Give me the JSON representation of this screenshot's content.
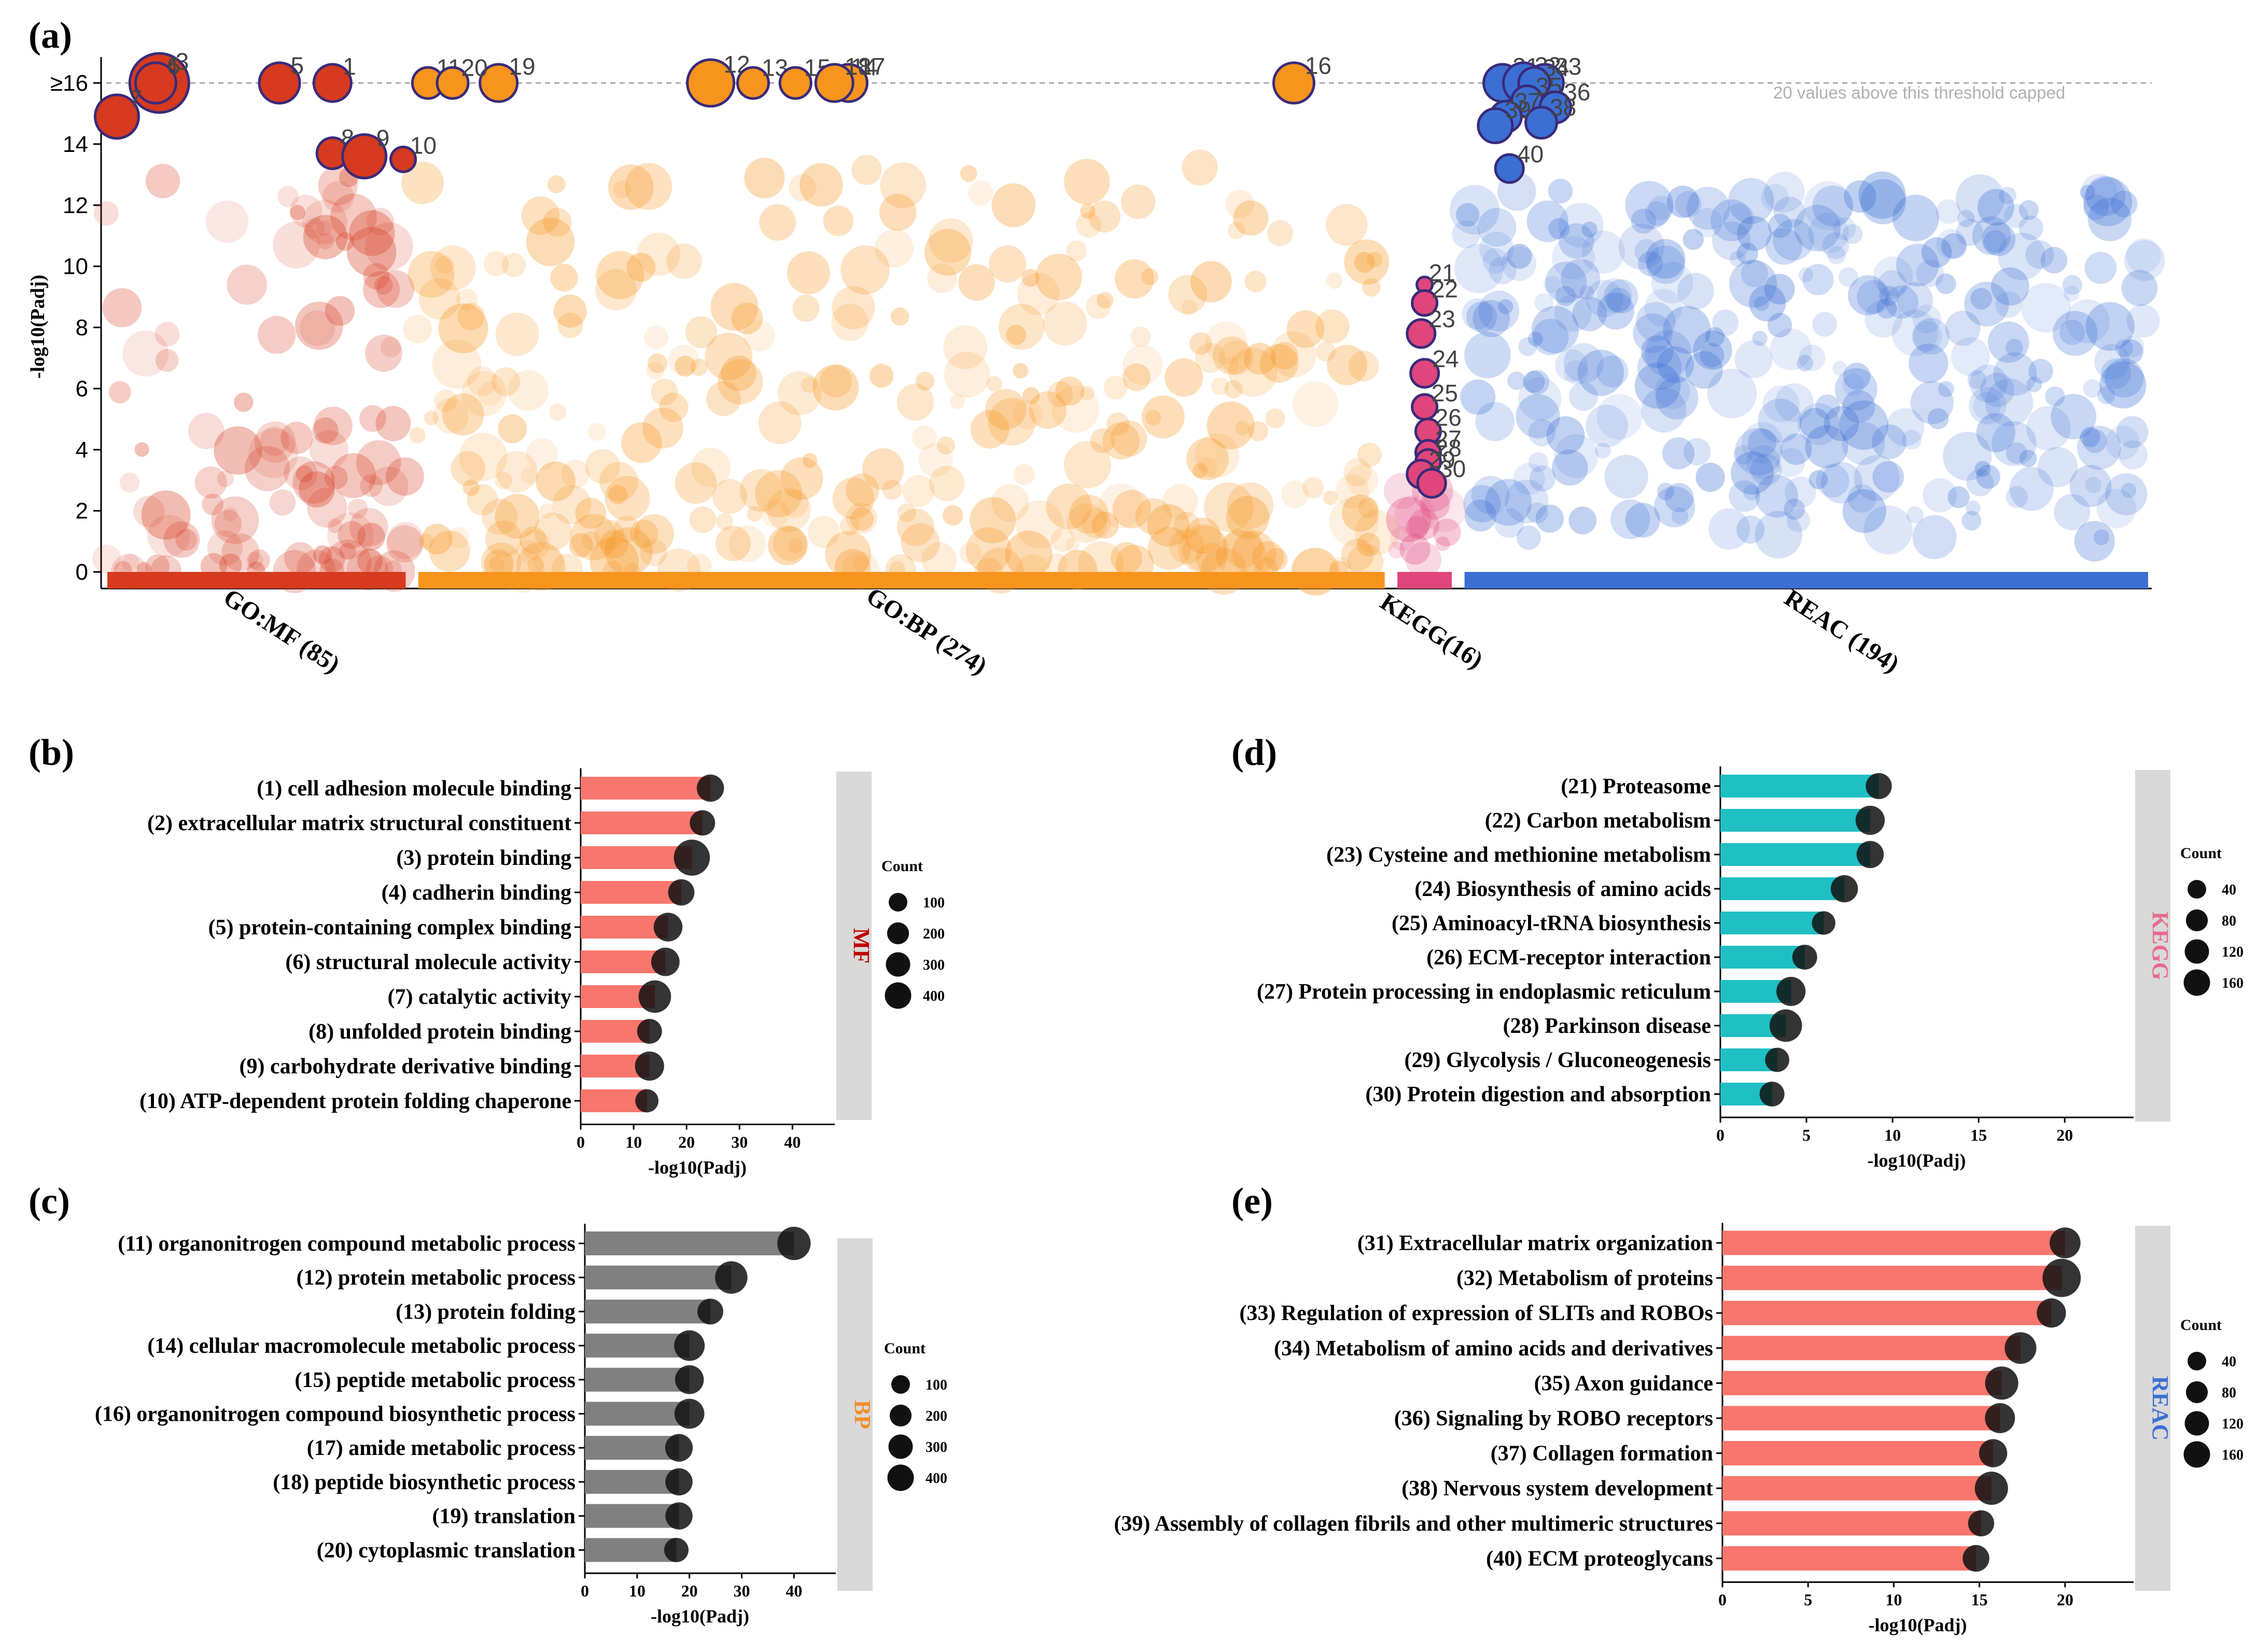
{
  "colors": {
    "mf": "#d63a1f",
    "bp": "#f7941d",
    "kegg": "#e0457b",
    "reac": "#3b6fd4",
    "bar_red": "#f8766d",
    "bar_grey": "#808080",
    "bar_teal": "#1fbfc4",
    "strip": "#d9d9d9",
    "dot": "#111111",
    "strip_mf": "#c00000",
    "strip_bp": "#f28e2b",
    "strip_kegg": "#e86a8c",
    "strip_reac": "#3b6fd4"
  },
  "chart_data": [
    {
      "panel": "(a)",
      "type": "scatter",
      "title": "",
      "ylabel": "-log10(Padj)",
      "ylim": [
        0,
        16
      ],
      "yticks": [
        "0",
        "2",
        "4",
        "6",
        "8",
        "10",
        "12",
        "14",
        "≥16"
      ],
      "threshold_note": "20 values above this threshold capped",
      "groups": [
        {
          "key": "mf",
          "label": "GO:MF (85)",
          "xrange": [
            0,
            85
          ]
        },
        {
          "key": "bp",
          "label": "GO:BP (274)",
          "xrange": [
            88,
            362
          ]
        },
        {
          "key": "kegg",
          "label": "KEGG(16)",
          "xrange": [
            365,
            381
          ]
        },
        {
          "key": "reac",
          "label": "REAC (194)",
          "xrange": [
            384,
            578
          ]
        }
      ],
      "labeled_points": [
        {
          "id": "1",
          "group": "mf",
          "x": 64,
          "y": 16,
          "s": 1.2
        },
        {
          "id": "2",
          "group": "mf",
          "x": 14,
          "y": 16,
          "s": 1.2
        },
        {
          "id": "3",
          "group": "mf",
          "x": 15,
          "y": 16,
          "s": 1.9
        },
        {
          "id": "4",
          "group": "mf",
          "x": 14,
          "y": 16,
          "s": 1.1
        },
        {
          "id": "5",
          "group": "mf",
          "x": 49,
          "y": 16,
          "s": 1.3
        },
        {
          "id": "6",
          "group": "mf",
          "x": 14,
          "y": 16,
          "s": 1.3
        },
        {
          "id": "7",
          "group": "mf",
          "x": 3,
          "y": 14.9,
          "s": 1.4
        },
        {
          "id": "8",
          "group": "mf",
          "x": 64,
          "y": 13.7,
          "s": 1.0
        },
        {
          "id": "9",
          "group": "mf",
          "x": 73,
          "y": 13.6,
          "s": 1.4
        },
        {
          "id": "10",
          "group": "mf",
          "x": 84,
          "y": 13.5,
          "s": 0.8
        },
        {
          "id": "11",
          "group": "bp",
          "x": 91,
          "y": 16,
          "s": 1.0
        },
        {
          "id": "12",
          "group": "bp",
          "x": 171,
          "y": 16,
          "s": 1.5
        },
        {
          "id": "13",
          "group": "bp",
          "x": 183,
          "y": 16,
          "s": 1.0
        },
        {
          "id": "14",
          "group": "bp",
          "x": 208,
          "y": 16,
          "s": 1.1
        },
        {
          "id": "15",
          "group": "bp",
          "x": 195,
          "y": 16,
          "s": 1.0
        },
        {
          "id": "16",
          "group": "bp",
          "x": 336,
          "y": 16,
          "s": 1.3
        },
        {
          "id": "17",
          "group": "bp",
          "x": 210,
          "y": 16,
          "s": 1.2
        },
        {
          "id": "18",
          "group": "bp",
          "x": 206,
          "y": 16,
          "s": 1.2
        },
        {
          "id": "19",
          "group": "bp",
          "x": 111,
          "y": 16,
          "s": 1.2
        },
        {
          "id": "20",
          "group": "bp",
          "x": 98,
          "y": 16,
          "s": 1.0
        },
        {
          "id": "21",
          "group": "kegg",
          "x": 373,
          "y": 9.4,
          "s": 0.5
        },
        {
          "id": "22",
          "group": "kegg",
          "x": 373,
          "y": 8.8,
          "s": 0.8
        },
        {
          "id": "23",
          "group": "kegg",
          "x": 372,
          "y": 7.8,
          "s": 0.9
        },
        {
          "id": "24",
          "group": "kegg",
          "x": 373,
          "y": 6.5,
          "s": 0.9
        },
        {
          "id": "25",
          "group": "kegg",
          "x": 373,
          "y": 5.4,
          "s": 0.8
        },
        {
          "id": "26",
          "group": "kegg",
          "x": 374,
          "y": 4.6,
          "s": 0.8
        },
        {
          "id": "27",
          "group": "kegg",
          "x": 374,
          "y": 3.9,
          "s": 0.8
        },
        {
          "id": "28",
          "group": "kegg",
          "x": 374,
          "y": 3.6,
          "s": 0.8
        },
        {
          "id": "29",
          "group": "kegg",
          "x": 372,
          "y": 3.2,
          "s": 0.9
        },
        {
          "id": "30",
          "group": "kegg",
          "x": 375,
          "y": 2.9,
          "s": 0.9
        },
        {
          "id": "31",
          "group": "reac",
          "x": 395,
          "y": 16,
          "s": 1.2
        },
        {
          "id": "32",
          "group": "reac",
          "x": 401,
          "y": 16,
          "s": 1.3
        },
        {
          "id": "33",
          "group": "reac",
          "x": 407,
          "y": 16,
          "s": 1.2
        },
        {
          "id": "34",
          "group": "reac",
          "x": 404,
          "y": 16,
          "s": 1.0
        },
        {
          "id": "35",
          "group": "reac",
          "x": 402,
          "y": 15.4,
          "s": 1.0
        },
        {
          "id": "36",
          "group": "reac",
          "x": 410,
          "y": 15.2,
          "s": 1.0
        },
        {
          "id": "37",
          "group": "reac",
          "x": 396,
          "y": 14.9,
          "s": 1.0
        },
        {
          "id": "38",
          "group": "reac",
          "x": 406,
          "y": 14.7,
          "s": 1.0
        },
        {
          "id": "39",
          "group": "reac",
          "x": 393,
          "y": 14.6,
          "s": 1.1
        },
        {
          "id": "40",
          "group": "reac",
          "x": 397,
          "y": 13.2,
          "s": 0.9
        }
      ]
    },
    {
      "panel": "(b)",
      "type": "bar",
      "strip": "MF",
      "color_key": "bar_red",
      "strip_key": "strip_mf",
      "xlabel": "-log10(Padj)",
      "xlim": [
        0,
        48
      ],
      "xticks": [
        0,
        10,
        20,
        30,
        40
      ],
      "legend": {
        "title": "Count",
        "labels": [
          "100",
          "200",
          "300",
          "400"
        ],
        "values": [
          100,
          200,
          300,
          400
        ]
      },
      "categories": [
        "(1) cell adhesion molecule binding",
        "(2) extracellular matrix structural constituent",
        "(3) protein binding",
        "(4) cadherin binding",
        "(5) protein-containing complex binding",
        "(6) structural molecule activity",
        "(7) catalytic activity",
        "(8) unfolded protein binding",
        "(9) carbohydrate derivative binding",
        "(10) ATP-dependent protein folding chaperone"
      ],
      "values": [
        24.5,
        23,
        21,
        19,
        16.5,
        16,
        14,
        13,
        13,
        12.5
      ],
      "counts": [
        150,
        110,
        430,
        130,
        190,
        180,
        300,
        100,
        200,
        70
      ]
    },
    {
      "panel": "(c)",
      "type": "bar",
      "strip": "BP",
      "color_key": "bar_grey",
      "strip_key": "strip_bp",
      "xlabel": "-log10(Padj)",
      "xlim": [
        0,
        48
      ],
      "xticks": [
        0,
        10,
        20,
        30,
        40
      ],
      "legend": {
        "title": "Count",
        "labels": [
          "100",
          "200",
          "300",
          "400"
        ],
        "values": [
          100,
          200,
          300,
          400
        ]
      },
      "categories": [
        "(11) organonitrogen compound metabolic process",
        "(12) protein metabolic process",
        "(13) protein folding",
        "(14) cellular macromolecule metabolic process",
        "(15) peptide metabolic process",
        "(16) organonitrogen compound biosynthetic process",
        "(17) amide metabolic process",
        "(18) peptide biosynthetic process",
        "(19) translation",
        "(20) cytoplasmic translation"
      ],
      "values": [
        40,
        28,
        24,
        20,
        20,
        20,
        18,
        18,
        18,
        17.5
      ],
      "counts": [
        330,
        300,
        120,
        240,
        190,
        220,
        160,
        150,
        150,
        90
      ]
    },
    {
      "panel": "(d)",
      "type": "bar",
      "strip": "KEGG",
      "color_key": "bar_teal",
      "strip_key": "strip_kegg",
      "xlabel": "-log10(Padj)",
      "xlim": [
        0,
        24
      ],
      "xticks": [
        0,
        5,
        10,
        15,
        20
      ],
      "legend": {
        "title": "Count",
        "labels": [
          "40",
          "80",
          "120",
          "160"
        ],
        "values": [
          40,
          80,
          120,
          160
        ]
      },
      "categories": [
        "(21) Proteasome",
        "(22) Carbon metabolism",
        "(23) Cysteine and methionine metabolism",
        "(24) Biosynthesis of amino acids",
        "(25) Aminoacyl-tRNA biosynthesis",
        "(26) ECM-receptor interaction",
        "(27) Protein processing in endoplasmic reticulum",
        "(28) Parkinson disease",
        "(29) Glycolysis / Gluconeogenesis",
        "(30) Protein digestion and absorption"
      ],
      "values": [
        9.2,
        8.7,
        8.7,
        7.2,
        6,
        4.9,
        4.1,
        3.8,
        3.3,
        3.0
      ],
      "counts": [
        50,
        80,
        60,
        60,
        30,
        40,
        80,
        120,
        35,
        40
      ]
    },
    {
      "panel": "(e)",
      "type": "bar",
      "strip": "REAC",
      "color_key": "bar_red",
      "strip_key": "strip_reac",
      "xlabel": "-log10(Padj)",
      "xlim": [
        0,
        24
      ],
      "xticks": [
        0,
        5,
        10,
        15,
        20
      ],
      "legend": {
        "title": "Count",
        "labels": [
          "40",
          "80",
          "120",
          "160"
        ],
        "values": [
          40,
          80,
          120,
          160
        ]
      },
      "categories": [
        "(31) Extracellular matrix organization",
        "(32) Metabolism of proteins",
        "(33) Regulation of expression of SLITs and ROBOs",
        "(34) Metabolism of amino acids and derivatives",
        "(35) Axon guidance",
        "(36) Signaling by ROBO receptors",
        "(37) Collagen formation",
        "(38) Nervous system development",
        "(39) Assembly of collagen fibrils and other multimeric structures",
        "(40) ECM proteoglycans"
      ],
      "values": [
        20,
        19.8,
        19.2,
        17.4,
        16.3,
        16.2,
        15.8,
        15.7,
        15.1,
        14.8
      ],
      "counts": [
        100,
        210,
        80,
        110,
        130,
        90,
        70,
        130,
        50,
        55
      ]
    }
  ]
}
